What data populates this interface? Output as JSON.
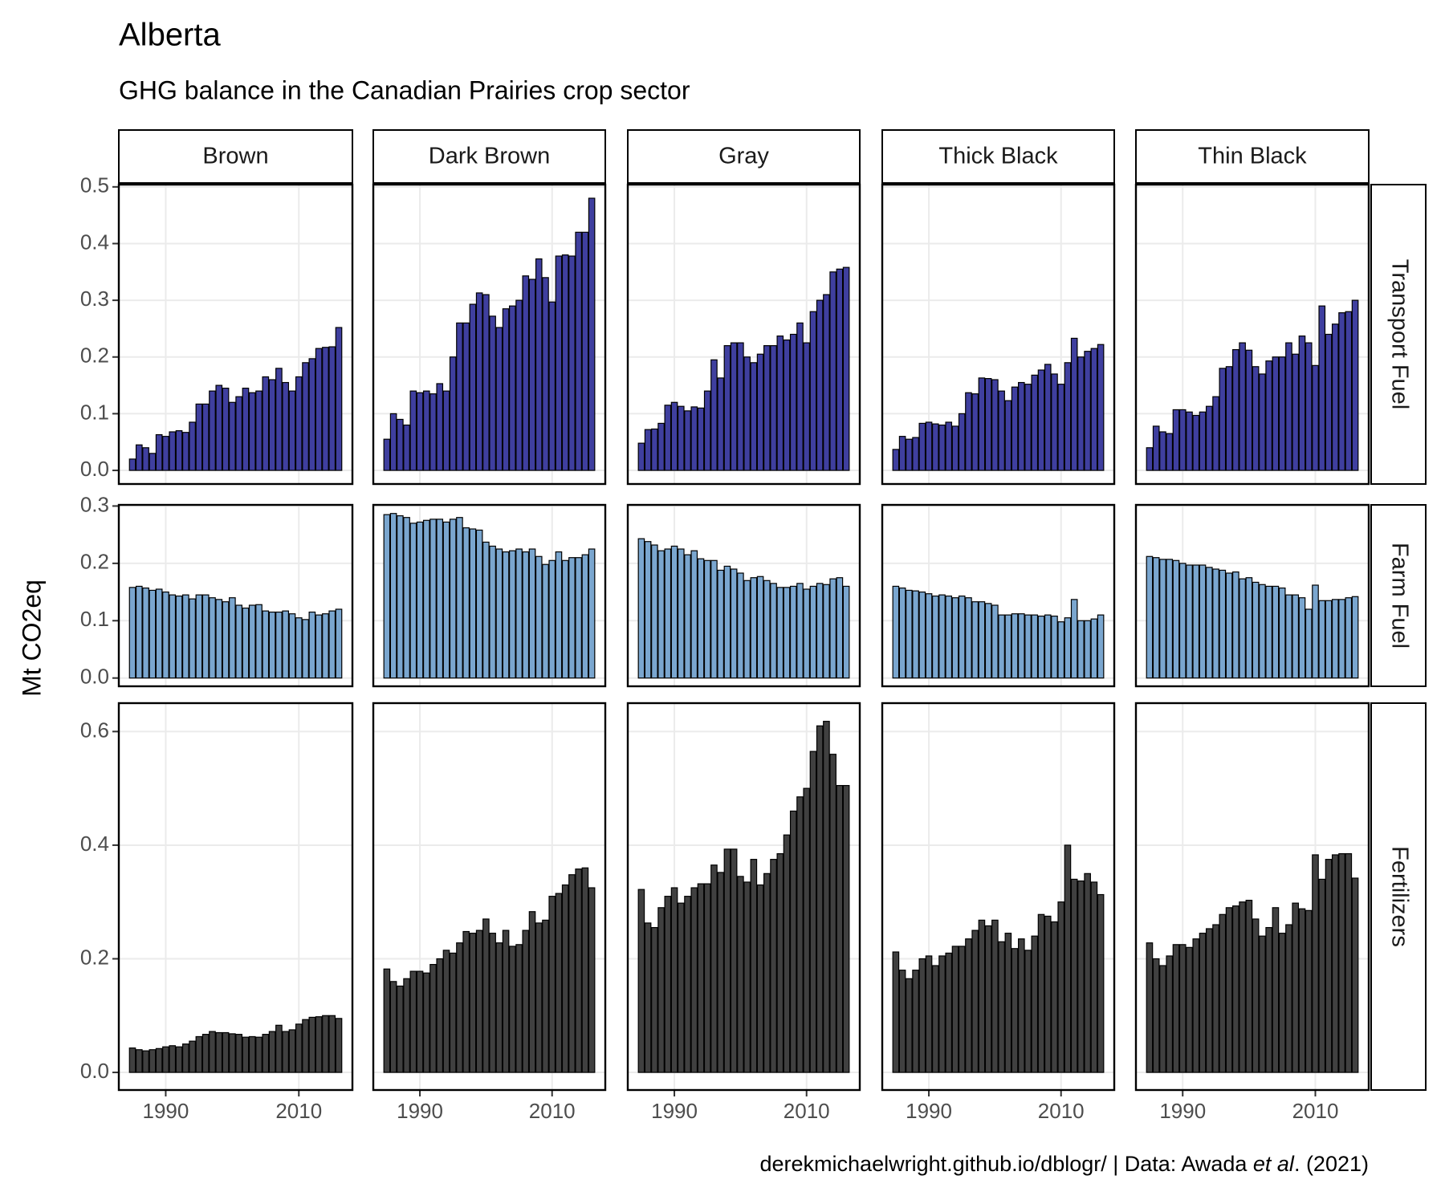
{
  "chart_data": {
    "type": "bar",
    "title": "Alberta",
    "subtitle": "GHG balance in the Canadian Prairies crop sector",
    "y_label": "Mt CO2eq",
    "caption": [
      "derekmichaelwright.github.io/dblogr/ | Data: Awada ",
      "et al",
      ". (2021)"
    ],
    "columns": [
      "Brown",
      "Dark Brown",
      "Gray",
      "Thick Black",
      "Thin Black"
    ],
    "x": [
      1985,
      1986,
      1987,
      1988,
      1989,
      1990,
      1991,
      1992,
      1993,
      1994,
      1995,
      1996,
      1997,
      1998,
      1999,
      2000,
      2001,
      2002,
      2003,
      2004,
      2005,
      2006,
      2007,
      2008,
      2009,
      2010,
      2011,
      2012,
      2013,
      2014,
      2015,
      2016
    ],
    "xlim": [
      1982.95,
      2018.05
    ],
    "xticks": [
      1990,
      2010
    ],
    "rows": [
      {
        "name": "Transport Fuel",
        "color": "#3f3f9f",
        "ylim": [
          -0.024,
          0.504
        ],
        "yticks": [
          {
            "value": 0,
            "label": "0.0"
          },
          0.1,
          0.2,
          0.3,
          0.4,
          0.5
        ],
        "values": [
          [
            0.02,
            0.045,
            0.04,
            0.03,
            0.063,
            0.06,
            0.068,
            0.07,
            0.067,
            0.085,
            0.117,
            0.117,
            0.14,
            0.15,
            0.145,
            0.12,
            0.13,
            0.145,
            0.137,
            0.14,
            0.165,
            0.16,
            0.18,
            0.155,
            0.14,
            0.165,
            0.19,
            0.197,
            0.215,
            0.217,
            0.218,
            0.252
          ],
          [
            0.055,
            0.1,
            0.09,
            0.08,
            0.14,
            0.137,
            0.14,
            0.135,
            0.153,
            0.14,
            0.2,
            0.26,
            0.26,
            0.293,
            0.313,
            0.31,
            0.272,
            0.252,
            0.285,
            0.29,
            0.3,
            0.343,
            0.337,
            0.373,
            0.34,
            0.297,
            0.378,
            0.38,
            0.378,
            0.42,
            0.42,
            0.48
          ],
          [
            0.048,
            0.072,
            0.073,
            0.083,
            0.115,
            0.12,
            0.113,
            0.105,
            0.112,
            0.11,
            0.14,
            0.195,
            0.163,
            0.22,
            0.225,
            0.225,
            0.2,
            0.19,
            0.205,
            0.22,
            0.22,
            0.237,
            0.23,
            0.24,
            0.26,
            0.225,
            0.28,
            0.3,
            0.31,
            0.35,
            0.355,
            0.358
          ],
          [
            0.037,
            0.06,
            0.055,
            0.058,
            0.083,
            0.085,
            0.082,
            0.08,
            0.085,
            0.078,
            0.1,
            0.137,
            0.135,
            0.163,
            0.162,
            0.16,
            0.14,
            0.123,
            0.147,
            0.155,
            0.152,
            0.168,
            0.177,
            0.187,
            0.17,
            0.152,
            0.19,
            0.233,
            0.2,
            0.21,
            0.215,
            0.222
          ],
          [
            0.04,
            0.078,
            0.068,
            0.065,
            0.107,
            0.107,
            0.103,
            0.097,
            0.103,
            0.113,
            0.13,
            0.18,
            0.183,
            0.213,
            0.225,
            0.212,
            0.183,
            0.17,
            0.193,
            0.2,
            0.2,
            0.225,
            0.205,
            0.237,
            0.225,
            0.185,
            0.29,
            0.24,
            0.258,
            0.278,
            0.28,
            0.3
          ]
        ]
      },
      {
        "name": "Farm Fuel",
        "color": "#7aa6cf",
        "ylim": [
          -0.0144,
          0.302
        ],
        "yticks": [
          {
            "value": 0,
            "label": "0.0"
          },
          0.1,
          0.2,
          0.3
        ],
        "values": [
          [
            0.158,
            0.16,
            0.157,
            0.153,
            0.155,
            0.15,
            0.145,
            0.143,
            0.145,
            0.138,
            0.145,
            0.145,
            0.14,
            0.137,
            0.133,
            0.14,
            0.127,
            0.122,
            0.127,
            0.128,
            0.117,
            0.115,
            0.115,
            0.117,
            0.112,
            0.105,
            0.102,
            0.115,
            0.11,
            0.112,
            0.117,
            0.12
          ],
          [
            0.285,
            0.287,
            0.283,
            0.28,
            0.27,
            0.272,
            0.275,
            0.277,
            0.277,
            0.272,
            0.277,
            0.28,
            0.262,
            0.26,
            0.258,
            0.237,
            0.23,
            0.225,
            0.22,
            0.222,
            0.225,
            0.22,
            0.225,
            0.212,
            0.198,
            0.205,
            0.22,
            0.205,
            0.21,
            0.21,
            0.215,
            0.225
          ],
          [
            0.243,
            0.238,
            0.232,
            0.222,
            0.225,
            0.23,
            0.225,
            0.215,
            0.222,
            0.208,
            0.205,
            0.205,
            0.188,
            0.195,
            0.19,
            0.183,
            0.17,
            0.175,
            0.177,
            0.17,
            0.165,
            0.158,
            0.158,
            0.16,
            0.165,
            0.155,
            0.16,
            0.165,
            0.163,
            0.173,
            0.175,
            0.16
          ],
          [
            0.16,
            0.157,
            0.153,
            0.152,
            0.15,
            0.147,
            0.143,
            0.145,
            0.143,
            0.14,
            0.143,
            0.14,
            0.133,
            0.133,
            0.13,
            0.127,
            0.11,
            0.11,
            0.112,
            0.112,
            0.11,
            0.11,
            0.108,
            0.11,
            0.108,
            0.098,
            0.105,
            0.137,
            0.1,
            0.1,
            0.103,
            0.11
          ],
          [
            0.212,
            0.21,
            0.207,
            0.207,
            0.205,
            0.2,
            0.197,
            0.197,
            0.197,
            0.193,
            0.19,
            0.188,
            0.183,
            0.185,
            0.173,
            0.175,
            0.167,
            0.163,
            0.16,
            0.16,
            0.157,
            0.145,
            0.145,
            0.14,
            0.12,
            0.162,
            0.135,
            0.135,
            0.137,
            0.137,
            0.14,
            0.142
          ]
        ]
      },
      {
        "name": "Fertilizers",
        "color": "#404040",
        "ylim": [
          -0.031,
          0.65
        ],
        "yticks": [
          {
            "value": 0,
            "label": "0.0"
          },
          0.2,
          0.4,
          0.6
        ],
        "values": [
          [
            0.043,
            0.04,
            0.038,
            0.04,
            0.042,
            0.045,
            0.047,
            0.045,
            0.05,
            0.055,
            0.063,
            0.067,
            0.072,
            0.07,
            0.07,
            0.068,
            0.067,
            0.062,
            0.063,
            0.062,
            0.067,
            0.072,
            0.083,
            0.072,
            0.075,
            0.085,
            0.093,
            0.097,
            0.098,
            0.1,
            0.1,
            0.095
          ],
          [
            0.182,
            0.16,
            0.152,
            0.165,
            0.178,
            0.178,
            0.175,
            0.19,
            0.2,
            0.215,
            0.21,
            0.228,
            0.248,
            0.245,
            0.25,
            0.27,
            0.245,
            0.228,
            0.25,
            0.222,
            0.225,
            0.25,
            0.283,
            0.263,
            0.268,
            0.31,
            0.315,
            0.33,
            0.348,
            0.358,
            0.36,
            0.325
          ],
          [
            0.322,
            0.263,
            0.255,
            0.29,
            0.31,
            0.325,
            0.298,
            0.31,
            0.325,
            0.332,
            0.332,
            0.365,
            0.352,
            0.393,
            0.393,
            0.345,
            0.335,
            0.375,
            0.33,
            0.35,
            0.375,
            0.385,
            0.418,
            0.46,
            0.485,
            0.5,
            0.565,
            0.61,
            0.618,
            0.56,
            0.505,
            0.505
          ],
          [
            0.212,
            0.18,
            0.165,
            0.18,
            0.2,
            0.205,
            0.188,
            0.205,
            0.21,
            0.222,
            0.222,
            0.235,
            0.25,
            0.268,
            0.258,
            0.268,
            0.23,
            0.245,
            0.218,
            0.235,
            0.215,
            0.24,
            0.278,
            0.275,
            0.265,
            0.3,
            0.4,
            0.34,
            0.337,
            0.35,
            0.335,
            0.313
          ],
          [
            0.228,
            0.2,
            0.188,
            0.205,
            0.225,
            0.225,
            0.22,
            0.235,
            0.245,
            0.253,
            0.26,
            0.278,
            0.29,
            0.293,
            0.3,
            0.303,
            0.27,
            0.24,
            0.255,
            0.29,
            0.245,
            0.26,
            0.298,
            0.288,
            0.285,
            0.383,
            0.34,
            0.375,
            0.383,
            0.385,
            0.385,
            0.342
          ]
        ]
      }
    ]
  }
}
